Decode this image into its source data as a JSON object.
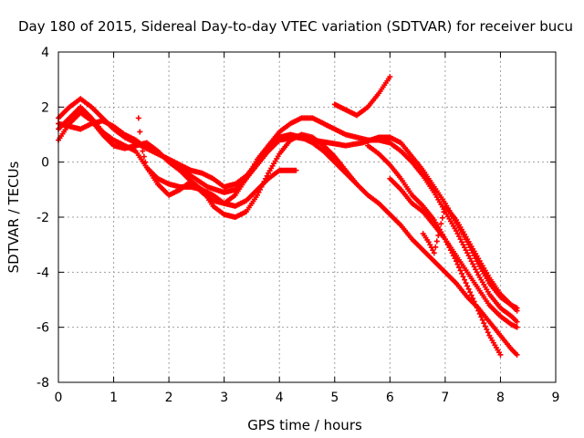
{
  "chart_data": {
    "type": "scatter",
    "title": "Day 180 of 2015, Sidereal Day-to-day VTEC variation (SDTVAR) for receiver bucu",
    "xlabel": "GPS time / hours",
    "ylabel": "SDTVAR / TECUs",
    "xlim": [
      0,
      9
    ],
    "ylim": [
      -8,
      4
    ],
    "xticks": [
      0,
      1,
      2,
      3,
      4,
      5,
      6,
      7,
      8,
      9
    ],
    "yticks": [
      -8,
      -6,
      -4,
      -2,
      0,
      2,
      4
    ],
    "grid": true,
    "marker": "plus",
    "colors": {
      "points": "#ff0000",
      "grid": "#a0a0a0",
      "frame": "#000000"
    },
    "series": [
      {
        "name": "track-1",
        "x": [
          0,
          0.2,
          0.4,
          0.6,
          0.8,
          1.0,
          1.2,
          1.5,
          1.8,
          2.1,
          2.4,
          2.7,
          3.0,
          3.2,
          3.4,
          3.6,
          3.8,
          4.0,
          4.3,
          4.6,
          4.9,
          5.2,
          5.5,
          5.8,
          6.0,
          6.2,
          6.4,
          6.6,
          6.8,
          7.0,
          7.2,
          7.4,
          7.6,
          7.8,
          8.0,
          8.2,
          8.3
        ],
        "y": [
          1.6,
          2.0,
          2.3,
          2.0,
          1.6,
          1.2,
          0.9,
          0.6,
          0.3,
          0.0,
          -0.5,
          -0.9,
          -1.1,
          -1.0,
          -0.6,
          -0.1,
          0.4,
          0.8,
          0.9,
          0.8,
          0.7,
          0.6,
          0.7,
          0.9,
          0.9,
          0.7,
          0.2,
          -0.3,
          -0.9,
          -1.5,
          -2.2,
          -2.9,
          -3.7,
          -4.4,
          -4.9,
          -5.2,
          -5.4
        ]
      },
      {
        "name": "track-2",
        "x": [
          0,
          0.2,
          0.4,
          0.6,
          0.8,
          1.0,
          1.2,
          1.4,
          1.6,
          1.8,
          2.0,
          2.2,
          2.4,
          2.6,
          2.8,
          3.0,
          3.2,
          3.4,
          3.6,
          3.8,
          4.0,
          4.2,
          4.4,
          4.6,
          4.8,
          5.0,
          5.2,
          5.4
        ],
        "y": [
          0.8,
          1.4,
          1.8,
          1.5,
          1.0,
          0.6,
          0.5,
          0.6,
          0.7,
          0.4,
          0.0,
          -0.3,
          -0.7,
          -1.1,
          -1.4,
          -1.5,
          -1.2,
          -0.6,
          0.1,
          0.6,
          0.9,
          1.0,
          0.9,
          0.7,
          0.4,
          0.0,
          -0.4,
          -0.8
        ]
      },
      {
        "name": "track-3",
        "x": [
          0,
          0.2,
          0.4,
          0.6,
          0.8,
          1.0,
          1.2,
          1.4,
          1.6,
          1.8,
          2.0,
          2.2,
          2.4,
          2.6,
          2.8,
          3.0,
          3.2,
          3.4,
          3.6,
          3.8,
          4.0,
          4.2,
          4.4,
          4.6,
          4.8,
          5.0,
          5.2,
          5.4,
          5.6,
          5.8,
          6.0,
          6.2,
          6.4,
          6.6,
          6.8,
          7.0,
          7.2,
          7.4,
          7.6,
          7.8,
          8.0,
          8.2,
          8.3
        ],
        "y": [
          1.4,
          1.3,
          1.2,
          1.4,
          1.5,
          1.3,
          1.0,
          0.8,
          0.5,
          0.3,
          0.1,
          -0.1,
          -0.3,
          -0.4,
          -0.6,
          -0.9,
          -0.8,
          -0.5,
          0.0,
          0.6,
          1.1,
          1.4,
          1.6,
          1.6,
          1.4,
          1.2,
          1.0,
          0.9,
          0.8,
          0.8,
          0.7,
          0.4,
          0.0,
          -0.5,
          -1.1,
          -1.8,
          -2.5,
          -3.3,
          -4.1,
          -4.8,
          -5.3,
          -5.6,
          -5.8
        ]
      },
      {
        "name": "track-4",
        "x": [
          0,
          0.2,
          0.4,
          0.6,
          0.8,
          1.0,
          1.2,
          1.4,
          1.6,
          1.8,
          2.0,
          2.2,
          2.4,
          2.6,
          2.8,
          3.0,
          3.2,
          3.4,
          3.6,
          3.8,
          4.0,
          4.2,
          4.4,
          4.6,
          4.8,
          5.0,
          5.2,
          5.4,
          5.6,
          5.8,
          6.0,
          6.2,
          6.4,
          6.6,
          6.8,
          7.0,
          7.2,
          7.4,
          7.6,
          7.8,
          8.0,
          8.2,
          8.3
        ],
        "y": [
          1.2,
          1.6,
          2.0,
          1.6,
          1.1,
          0.8,
          0.6,
          0.4,
          -0.2,
          -0.8,
          -1.2,
          -1.0,
          -0.7,
          -1.0,
          -1.6,
          -1.9,
          -2.0,
          -1.8,
          -1.2,
          -0.4,
          0.3,
          0.8,
          1.0,
          0.9,
          0.6,
          0.2,
          -0.3,
          -0.8,
          -1.2,
          -1.5,
          -1.9,
          -2.3,
          -2.8,
          -3.2,
          -3.6,
          -4.0,
          -4.4,
          -4.9,
          -5.3,
          -5.8,
          -6.3,
          -6.8,
          -7.0
        ]
      },
      {
        "name": "track-5",
        "x": [
          1.45,
          1.5,
          1.6,
          1.8,
          2.0,
          2.2,
          2.4,
          2.6,
          2.8,
          3.0,
          3.2,
          3.4,
          3.6,
          3.8,
          4.0,
          4.1,
          4.3
        ],
        "y": [
          1.6,
          0.6,
          -0.2,
          -0.6,
          -0.8,
          -0.9,
          -0.9,
          -1.0,
          -1.2,
          -1.5,
          -1.6,
          -1.4,
          -1.0,
          -0.6,
          -0.3,
          -0.3,
          -0.3
        ]
      },
      {
        "name": "track-6",
        "x": [
          5.0,
          5.2,
          5.4,
          5.6,
          5.8,
          6.0
        ],
        "y": [
          2.1,
          1.9,
          1.7,
          2.0,
          2.5,
          3.1
        ]
      },
      {
        "name": "track-7",
        "x": [
          5.6,
          5.8,
          6.0,
          6.2,
          6.4,
          6.6,
          6.8,
          7.0,
          7.2,
          7.4,
          7.6,
          7.8,
          8.0
        ],
        "y": [
          0.6,
          0.3,
          -0.1,
          -0.6,
          -1.2,
          -1.6,
          -2.1,
          -2.8,
          -3.6,
          -4.5,
          -5.4,
          -6.3,
          -7.0
        ]
      },
      {
        "name": "track-8",
        "x": [
          6.0,
          6.2,
          6.4,
          6.6,
          6.8,
          7.0,
          7.2,
          7.4,
          7.6,
          7.8,
          8.0,
          8.2,
          8.3
        ],
        "y": [
          -0.6,
          -1.0,
          -1.5,
          -1.8,
          -2.3,
          -2.8,
          -3.4,
          -4.0,
          -4.6,
          -5.2,
          -5.6,
          -5.9,
          -6.0
        ]
      },
      {
        "name": "track-9",
        "x": [
          6.6,
          6.7,
          6.8,
          7.0,
          7.2,
          7.4,
          7.6,
          7.8,
          8.0,
          8.2,
          8.3
        ],
        "y": [
          -2.6,
          -2.9,
          -3.3,
          -1.6,
          -2.1,
          -2.8,
          -3.5,
          -4.2,
          -4.8,
          -5.2,
          -5.3
        ]
      }
    ]
  }
}
